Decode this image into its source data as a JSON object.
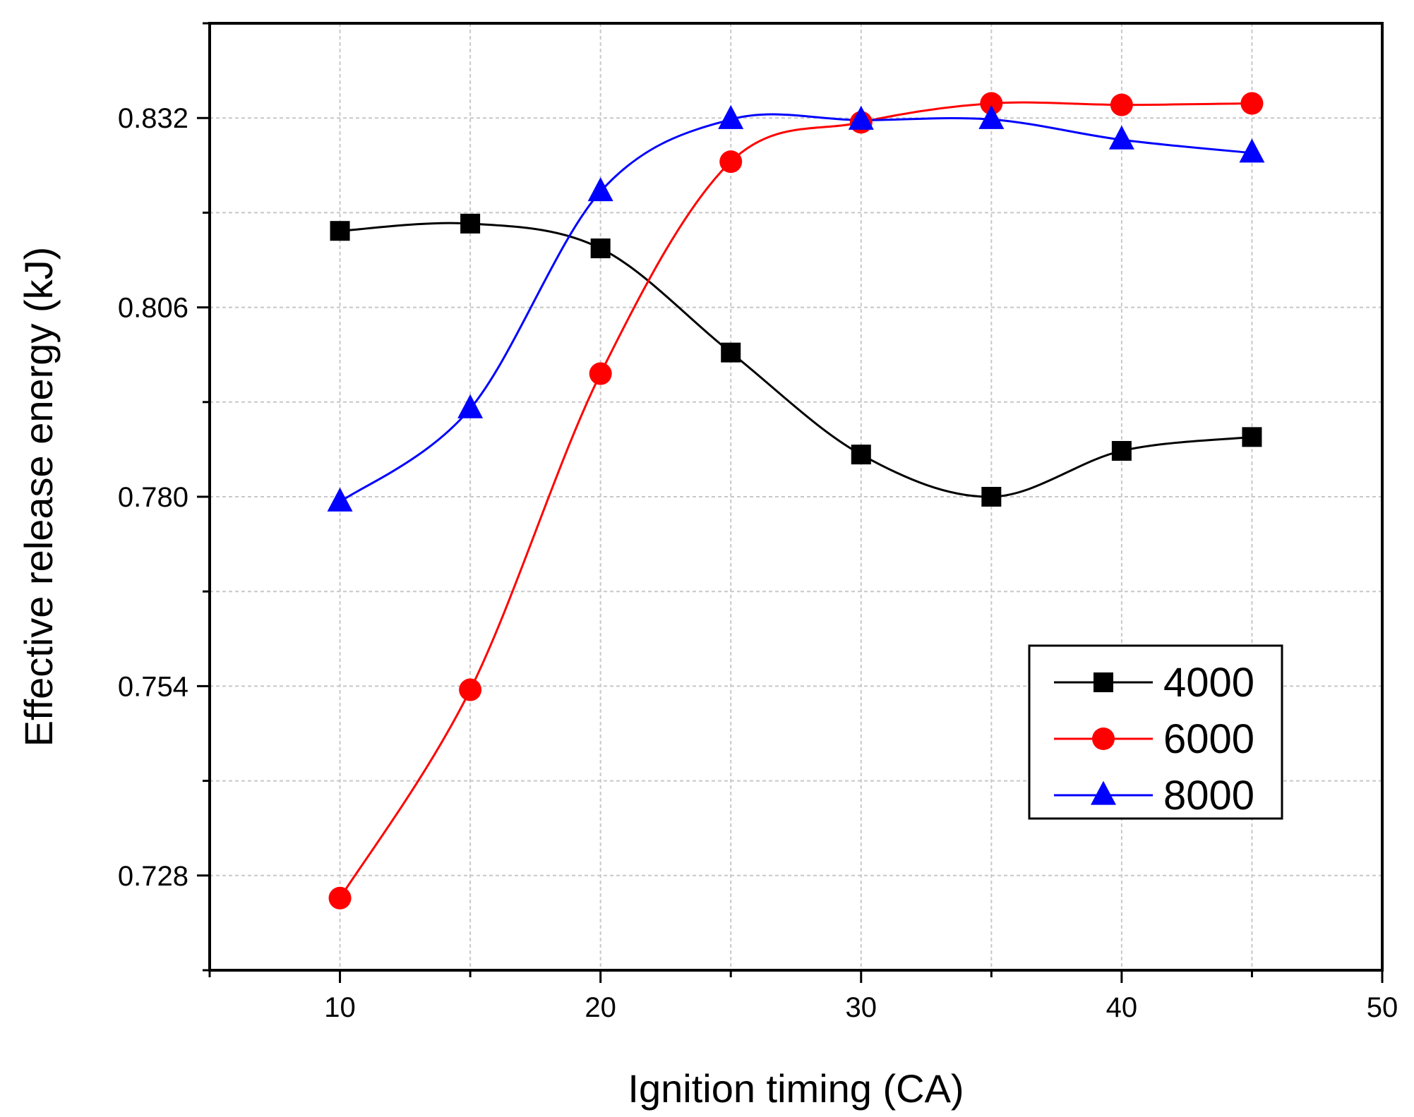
{
  "chart_data": {
    "type": "line",
    "title": "",
    "xlabel": "Ignition timing (CA)",
    "ylabel": "Effective release energy (kJ)",
    "xlim": [
      5,
      50
    ],
    "ylim": [
      0.715,
      0.845
    ],
    "xticks": [
      10,
      20,
      30,
      40,
      50
    ],
    "xtick_labels": [
      "10",
      "20",
      "30",
      "40",
      "50"
    ],
    "yticks": [
      0.728,
      0.754,
      0.78,
      0.806,
      0.832
    ],
    "ytick_labels": [
      "0.728",
      "0.754",
      "0.780",
      "0.806",
      "0.832"
    ],
    "grid": true,
    "legend_position": "bottom-right",
    "x": [
      10,
      15,
      20,
      25,
      30,
      35,
      40,
      45
    ],
    "series": [
      {
        "name": "4000",
        "color": "#000000",
        "marker": "square",
        "values": [
          0.8165,
          0.8175,
          0.8141,
          0.7998,
          0.7858,
          0.78,
          0.7863,
          0.7882
        ]
      },
      {
        "name": "6000",
        "color": "#ff0000",
        "marker": "circle",
        "values": [
          0.7249,
          0.7535,
          0.7969,
          0.826,
          0.8314,
          0.834,
          0.8338,
          0.834
        ]
      },
      {
        "name": "8000",
        "color": "#0000ff",
        "marker": "triangle",
        "values": [
          0.7793,
          0.7921,
          0.8219,
          0.8318,
          0.8317,
          0.8318,
          0.829,
          0.8272
        ]
      }
    ]
  }
}
